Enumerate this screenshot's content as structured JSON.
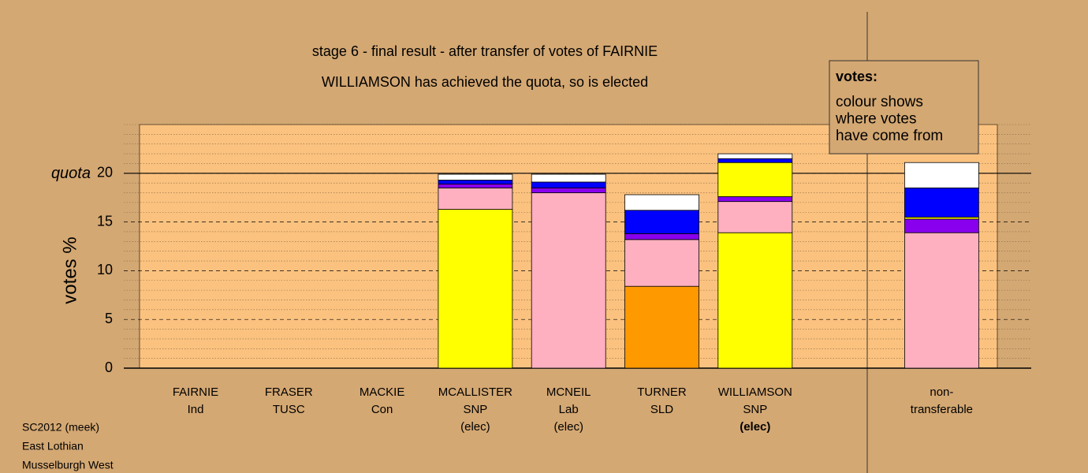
{
  "chart_data": {
    "type": "stacked-bar",
    "title": "stage 6 - final result - after transfer of votes of FAIRNIE",
    "subtitle": "WILLIAMSON has achieved the quota, so is elected",
    "y_label": "votes %",
    "ylim": [
      0,
      25
    ],
    "yticks": [
      0,
      5,
      10,
      15,
      20
    ],
    "minor_grid_step": 1,
    "quota": 20,
    "quota_label": "quota",
    "legend": {
      "title": "votes:",
      "lines": [
        "colour shows",
        "where votes",
        "have come from"
      ]
    },
    "footer": [
      "SC2012 (meek)",
      "East Lothian",
      "Musselburgh West"
    ],
    "bars": [
      {
        "label": [
          "FAIRNIE",
          "Ind"
        ],
        "segments": []
      },
      {
        "label": [
          "FRASER",
          "TUSC"
        ],
        "segments": []
      },
      {
        "label": [
          "MACKIE",
          "Con"
        ],
        "segments": []
      },
      {
        "label": [
          "MCALLISTER",
          "SNP",
          "(elec)"
        ],
        "segments": [
          {
            "color": "#ffff00",
            "value": 16.3
          },
          {
            "color": "#ffb0c0",
            "value": 2.2
          },
          {
            "color": "#8800ee",
            "value": 0.4
          },
          {
            "color": "#0000ff",
            "value": 0.4
          },
          {
            "color": "#ffffff",
            "value": 0.6
          }
        ]
      },
      {
        "label": [
          "MCNEIL",
          "Lab",
          "(elec)"
        ],
        "segments": [
          {
            "color": "#ffb0c0",
            "value": 18.0
          },
          {
            "color": "#8800ee",
            "value": 0.5
          },
          {
            "color": "#0000ff",
            "value": 0.6
          },
          {
            "color": "#ffffff",
            "value": 0.8
          }
        ]
      },
      {
        "label": [
          "TURNER",
          "SLD"
        ],
        "segments": [
          {
            "color": "#ff9900",
            "value": 8.4
          },
          {
            "color": "#ffb0c0",
            "value": 4.8
          },
          {
            "color": "#8800ee",
            "value": 0.6
          },
          {
            "color": "#0000ff",
            "value": 2.4
          },
          {
            "color": "#ffffff",
            "value": 1.6
          }
        ]
      },
      {
        "label": [
          "WILLIAMSON",
          "SNP",
          "(elec)"
        ],
        "current": true,
        "segments": [
          {
            "color": "#ffff00",
            "value": 13.9
          },
          {
            "color": "#ffb0c0",
            "value": 3.2
          },
          {
            "color": "#8800ee",
            "value": 0.5
          },
          {
            "color": "#ffff00",
            "value": 3.5
          },
          {
            "color": "#0000ff",
            "value": 0.4
          },
          {
            "color": "#ffffff",
            "value": 0.5
          }
        ]
      },
      {
        "label": null,
        "segments": []
      },
      {
        "label": [
          "non-",
          "transferable"
        ],
        "segments": [
          {
            "color": "#ffb0c0",
            "value": 13.9
          },
          {
            "color": "#8800ee",
            "value": 1.4
          },
          {
            "color": "#ffff00",
            "value": 0.2
          },
          {
            "color": "#0000ff",
            "value": 3.0
          },
          {
            "color": "#ffffff",
            "value": 2.6
          }
        ]
      }
    ]
  }
}
